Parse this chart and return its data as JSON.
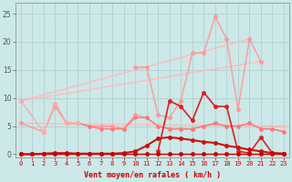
{
  "bg_color": "#cce8e8",
  "grid_color": "#aacccc",
  "xlabel": "Vent moyen/en rafales ( km/h )",
  "ylim": [
    -0.5,
    27
  ],
  "xlim": [
    -0.5,
    23.5
  ],
  "yticks": [
    0,
    5,
    10,
    15,
    20,
    25
  ],
  "xticks": [
    0,
    1,
    2,
    3,
    4,
    5,
    6,
    7,
    8,
    9,
    10,
    11,
    12,
    13,
    14,
    15,
    16,
    17,
    18,
    19,
    20,
    21,
    22,
    23
  ],
  "lines": [
    {
      "x": [
        0,
        20
      ],
      "y": [
        9.5,
        20.5
      ],
      "color": "#ffbbbb",
      "lw": 1.0,
      "ms": 2.5
    },
    {
      "x": [
        0,
        23
      ],
      "y": [
        5.5,
        5.0
      ],
      "color": "#ffbbbb",
      "lw": 1.0,
      "ms": 2.5
    },
    {
      "x": [
        0,
        21
      ],
      "y": [
        9.5,
        16.5
      ],
      "color": "#ffbbbb",
      "lw": 1.0,
      "ms": 2.5
    },
    {
      "note": "light pink jagged top - peaks at 11:15.5, 14:9.5, 15:18, 16:18, 17:24.5, 18:20.5, 19:8, 20:20.5, 21:16.5",
      "x": [
        10,
        11,
        12,
        13,
        14,
        15,
        16,
        17,
        18,
        19,
        20,
        21
      ],
      "y": [
        15.5,
        15.5,
        7.0,
        6.5,
        9.5,
        18.0,
        18.0,
        24.5,
        20.5,
        8.0,
        20.5,
        16.5
      ],
      "color": "#ff9999",
      "lw": 1.0,
      "ms": 2.5
    },
    {
      "x": [
        0,
        2,
        3,
        4,
        5,
        6,
        7,
        8,
        9,
        10,
        11,
        12,
        13,
        14,
        15,
        16,
        17,
        18,
        19,
        20,
        21,
        22,
        23
      ],
      "y": [
        5.5,
        4.0,
        8.5,
        5.5,
        5.5,
        5.0,
        5.0,
        5.0,
        4.5,
        7.0,
        6.5,
        5.0,
        4.5,
        4.5,
        4.5,
        5.0,
        5.5,
        5.0,
        5.0,
        5.5,
        4.5,
        4.5,
        4.0
      ],
      "color": "#ff9999",
      "lw": 1.0,
      "ms": 2.5
    },
    {
      "x": [
        3,
        4,
        5,
        6,
        7,
        8,
        9,
        10,
        11,
        12,
        13,
        14,
        15,
        16,
        17,
        18,
        19,
        20,
        21,
        22,
        23
      ],
      "y": [
        9.0,
        5.5,
        5.5,
        5.0,
        4.5,
        4.5,
        4.5,
        6.5,
        6.5,
        5.0,
        4.5,
        4.5,
        4.5,
        5.0,
        5.5,
        5.0,
        5.0,
        5.5,
        4.5,
        4.5,
        4.0
      ],
      "color": "#ff7777",
      "lw": 1.0,
      "ms": 2.0
    },
    {
      "note": "dark red - peaks at 13:9.5, 14:8.5, 16:11, 17:8.5, 18:8.5, dips to 0 at x=19+, spike at x=21",
      "x": [
        12,
        13,
        14,
        15,
        16,
        17,
        18,
        19,
        20,
        21,
        22,
        23
      ],
      "y": [
        0.5,
        9.5,
        8.5,
        6.0,
        11.0,
        8.5,
        8.5,
        0.5,
        0.2,
        3.0,
        0.2,
        0.1
      ],
      "color": "#dd2020",
      "lw": 1.2,
      "ms": 2.5
    },
    {
      "x": [
        0,
        1,
        2,
        3,
        4,
        5,
        6,
        7,
        8,
        9,
        10,
        11,
        12,
        13,
        14,
        15,
        16,
        17,
        18,
        19,
        20,
        21,
        22,
        23
      ],
      "y": [
        0,
        0,
        0.1,
        0.2,
        0.2,
        0.1,
        0.1,
        0.1,
        0.1,
        0.2,
        0.5,
        1.5,
        2.8,
        3.0,
        2.8,
        2.5,
        2.2,
        2.0,
        1.5,
        1.2,
        0.8,
        0.5,
        0.2,
        0.1
      ],
      "color": "#cc1111",
      "lw": 1.5,
      "ms": 2.5
    },
    {
      "x": [
        0,
        1,
        2,
        3,
        4,
        5,
        6,
        7,
        8,
        9,
        10,
        11,
        12,
        13,
        14,
        15,
        16,
        17,
        18,
        19,
        20,
        21,
        22,
        23
      ],
      "y": [
        0,
        0,
        0,
        0,
        0,
        0,
        0,
        0,
        0,
        0,
        0,
        0,
        0,
        0,
        0,
        0,
        0,
        0,
        0,
        0,
        0,
        0,
        0,
        0
      ],
      "color": "#cc0000",
      "lw": 1.0,
      "ms": 2.5
    },
    {
      "x": [
        0,
        2,
        3,
        4,
        5
      ],
      "y": [
        9.5,
        4.0,
        9.0,
        5.5,
        5.5
      ],
      "color": "#ffaaaa",
      "lw": 1.0,
      "ms": 2.5
    }
  ]
}
